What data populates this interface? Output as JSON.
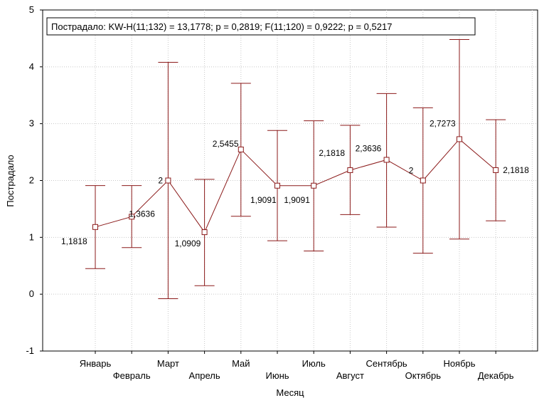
{
  "chart_data": {
    "type": "line",
    "xlabel": "Месяц",
    "ylabel": "Пострадало",
    "stats": "Пострадало:  KW-H(11;132) = 13,1778; p = 0,2819;  F(11;120) = 0,9222; p = 0,5217",
    "ylim": [
      -1,
      5
    ],
    "yticks": [
      "-1",
      "0",
      "1",
      "2",
      "3",
      "4",
      "5"
    ],
    "grid": true,
    "categories": [
      "Январь",
      "Февраль",
      "Март",
      "Апрель",
      "Май",
      "Июнь",
      "Июль",
      "Август",
      "Сентябрь",
      "Октябрь",
      "Ноябрь",
      "Декабрь"
    ],
    "series": [
      {
        "values": [
          1.1818,
          1.3636,
          2,
          1.0909,
          2.5455,
          1.9091,
          1.9091,
          2.1818,
          2.3636,
          2,
          2.7273,
          2.1818
        ],
        "labels": [
          "1,1818",
          "1,3636",
          "2",
          "1,0909",
          "2,5455",
          "1,9091",
          "1,9091",
          "2,1818",
          "2,3636",
          "2",
          "2,7273",
          "2,1818"
        ],
        "lower": [
          0.45,
          0.82,
          -0.08,
          0.15,
          1.37,
          0.94,
          0.76,
          1.4,
          1.18,
          0.72,
          0.97,
          1.29
        ],
        "upper": [
          1.91,
          1.91,
          4.08,
          2.02,
          3.71,
          2.88,
          3.05,
          2.97,
          3.53,
          3.28,
          4.48,
          3.07
        ]
      }
    ],
    "color": "#8b1a1a",
    "grid_color": "#c8c8c8"
  }
}
